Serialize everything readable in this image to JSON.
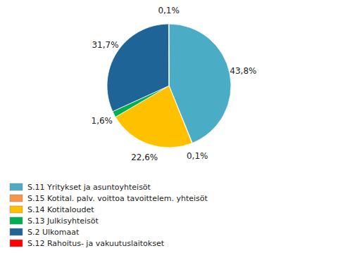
{
  "chart_data": {
    "type": "pie",
    "categories": [
      "S.11 Yritykset ja asuntoyhteisöt",
      "S.15 Kotital. palv. voittoa tavoittelem. yhteisöt",
      "S.14 Kotitaloudet",
      "S.13 Julkisyhteisöt",
      "S.2 Ulkomaat",
      "S.12 Rahoitus- ja vakuutuslaitokset"
    ],
    "values": [
      43.8,
      0.1,
      22.6,
      1.6,
      31.7,
      0.1
    ],
    "value_labels": [
      "43,8%",
      "0,1%",
      "22,6%",
      "1,6%",
      "31,7%",
      "0,1%"
    ],
    "colors": [
      "#4bacc6",
      "#f79646",
      "#ffc000",
      "#00b050",
      "#1f6496",
      "#ff0000"
    ],
    "data_labels": true,
    "legend": "lower left"
  }
}
